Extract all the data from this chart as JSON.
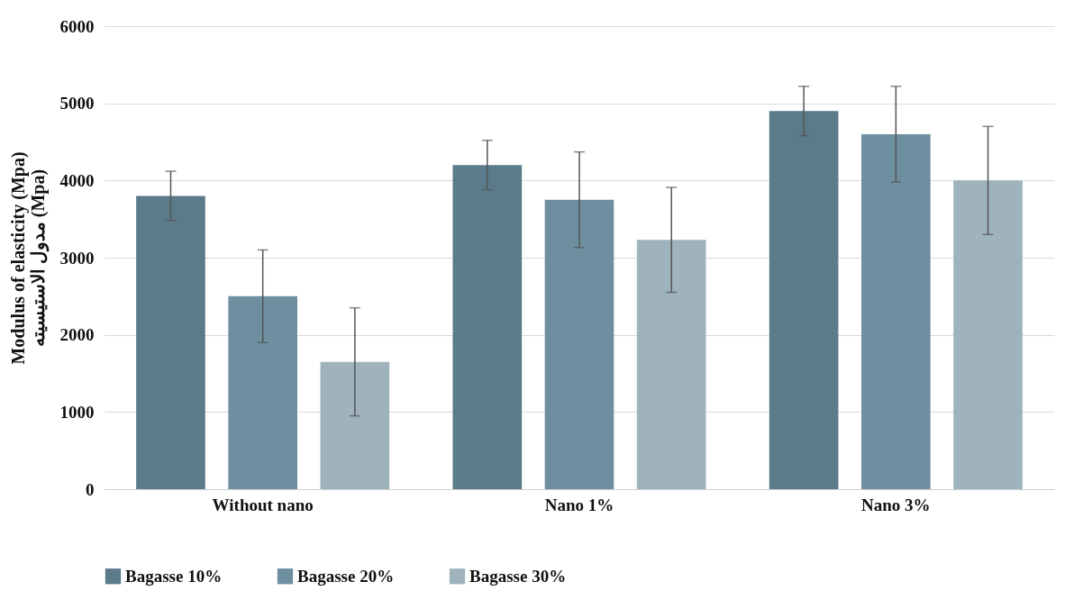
{
  "chart_data": {
    "type": "bar",
    "ylabel": "Modulus of elasticity (Mpa)\nمدول الاستیسیته (Mpa)",
    "categories": [
      "Without nano",
      "Nano 1%",
      "Nano 3%"
    ],
    "series": [
      {
        "name": "Bagasse 10%",
        "color": "#5b7b8b",
        "values": [
          3800,
          4200,
          4900
        ],
        "errors": [
          320,
          320,
          320
        ]
      },
      {
        "name": "Bagasse 20%",
        "color": "#6d8fa0",
        "values": [
          2500,
          3750,
          4600
        ],
        "errors": [
          600,
          620,
          620
        ]
      },
      {
        "name": "Bagasse 30%",
        "color": "#9fb3bd",
        "values": [
          1650,
          3230,
          4000
        ],
        "errors": [
          700,
          680,
          700
        ]
      }
    ],
    "ylim": [
      0,
      6000
    ],
    "yticks": [
      0,
      1000,
      2000,
      3000,
      4000,
      5000,
      6000
    ],
    "grid": "y",
    "legend": "bottom"
  }
}
